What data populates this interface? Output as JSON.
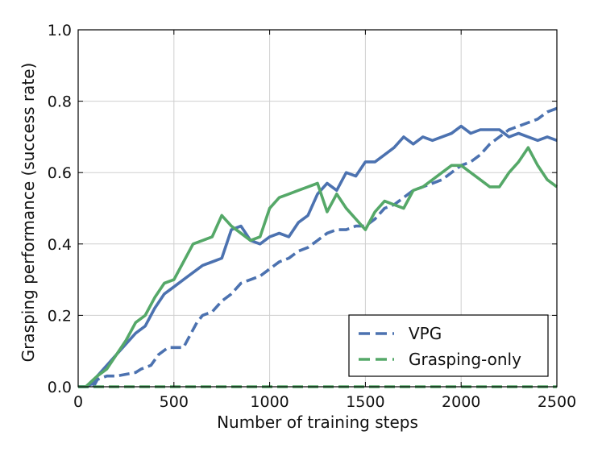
{
  "chart_data": {
    "type": "line",
    "xlabel": "Number of training steps",
    "ylabel": "Grasping performance (success rate)",
    "xlim": [
      0,
      2500
    ],
    "ylim": [
      0,
      1.0
    ],
    "xticks": [
      0,
      500,
      1000,
      1500,
      2000,
      2500
    ],
    "yticks": [
      0.0,
      0.2,
      0.4,
      0.6,
      0.8,
      1.0
    ],
    "xtick_labels": [
      "0",
      "500",
      "1000",
      "1500",
      "2000",
      "2500"
    ],
    "ytick_labels": [
      "0.0",
      "0.2",
      "0.4",
      "0.6",
      "0.8",
      "1.0"
    ],
    "grid": true,
    "legend_position": "bottom-right",
    "legend": [
      {
        "label": "VPG",
        "color": "#4c72b0"
      },
      {
        "label": "Grasping-only",
        "color": "#55a868"
      }
    ],
    "series": [
      {
        "name": "VPG",
        "style": "solid",
        "color": "#4c72b0",
        "x": [
          0,
          40,
          80,
          100,
          150,
          200,
          250,
          300,
          350,
          400,
          450,
          500,
          550,
          600,
          650,
          700,
          750,
          800,
          850,
          900,
          950,
          1000,
          1050,
          1100,
          1150,
          1200,
          1250,
          1300,
          1350,
          1400,
          1450,
          1500,
          1550,
          1600,
          1650,
          1700,
          1750,
          1800,
          1850,
          1900,
          1950,
          2000,
          2050,
          2100,
          2150,
          2200,
          2250,
          2300,
          2350,
          2400,
          2450,
          2500
        ],
        "y": [
          0.0,
          0.0,
          0.01,
          0.03,
          0.06,
          0.09,
          0.12,
          0.15,
          0.17,
          0.22,
          0.26,
          0.28,
          0.3,
          0.32,
          0.34,
          0.35,
          0.36,
          0.44,
          0.45,
          0.41,
          0.4,
          0.42,
          0.43,
          0.42,
          0.46,
          0.48,
          0.54,
          0.57,
          0.55,
          0.6,
          0.59,
          0.63,
          0.63,
          0.65,
          0.67,
          0.7,
          0.68,
          0.7,
          0.69,
          0.7,
          0.71,
          0.73,
          0.71,
          0.72,
          0.72,
          0.72,
          0.7,
          0.71,
          0.7,
          0.69,
          0.7,
          0.69
        ]
      },
      {
        "name": "VPG",
        "style": "dashed",
        "color": "#4c72b0",
        "x": [
          0,
          80,
          100,
          150,
          200,
          300,
          330,
          380,
          420,
          470,
          500,
          550,
          580,
          620,
          650,
          700,
          750,
          800,
          850,
          900,
          950,
          1000,
          1050,
          1100,
          1150,
          1200,
          1250,
          1300,
          1350,
          1400,
          1450,
          1500,
          1550,
          1600,
          1650,
          1700,
          1750,
          1800,
          1850,
          1900,
          1950,
          2000,
          2050,
          2100,
          2150,
          2200,
          2250,
          2300,
          2350,
          2400,
          2450,
          2500
        ],
        "y": [
          0.0,
          0.0,
          0.02,
          0.03,
          0.03,
          0.04,
          0.05,
          0.06,
          0.09,
          0.11,
          0.11,
          0.11,
          0.14,
          0.18,
          0.2,
          0.21,
          0.24,
          0.26,
          0.29,
          0.3,
          0.31,
          0.33,
          0.35,
          0.36,
          0.38,
          0.39,
          0.41,
          0.43,
          0.44,
          0.44,
          0.45,
          0.45,
          0.47,
          0.5,
          0.51,
          0.53,
          0.55,
          0.56,
          0.57,
          0.58,
          0.6,
          0.62,
          0.63,
          0.65,
          0.68,
          0.7,
          0.72,
          0.73,
          0.74,
          0.75,
          0.77,
          0.78
        ]
      },
      {
        "name": "Grasping-only",
        "style": "solid",
        "color": "#55a868",
        "x": [
          0,
          40,
          80,
          100,
          150,
          200,
          250,
          300,
          350,
          400,
          450,
          500,
          550,
          600,
          650,
          700,
          750,
          800,
          850,
          900,
          950,
          1000,
          1050,
          1100,
          1150,
          1200,
          1250,
          1300,
          1350,
          1400,
          1450,
          1500,
          1550,
          1600,
          1650,
          1700,
          1750,
          1800,
          1850,
          1900,
          1950,
          2000,
          2050,
          2100,
          2150,
          2200,
          2250,
          2300,
          2350,
          2400,
          2450,
          2500
        ],
        "y": [
          0.0,
          0.0,
          0.02,
          0.03,
          0.05,
          0.09,
          0.13,
          0.18,
          0.2,
          0.25,
          0.29,
          0.3,
          0.35,
          0.4,
          0.41,
          0.42,
          0.48,
          0.45,
          0.43,
          0.41,
          0.42,
          0.5,
          0.53,
          0.54,
          0.55,
          0.56,
          0.57,
          0.49,
          0.54,
          0.5,
          0.47,
          0.44,
          0.49,
          0.52,
          0.51,
          0.5,
          0.55,
          0.56,
          0.58,
          0.6,
          0.62,
          0.62,
          0.6,
          0.58,
          0.56,
          0.56,
          0.6,
          0.63,
          0.67,
          0.62,
          0.58,
          0.56
        ]
      },
      {
        "name": "Grasping-only",
        "style": "dashed",
        "color": "#55a868",
        "x": [
          0,
          2500
        ],
        "y": [
          0.0,
          0.0
        ]
      }
    ]
  }
}
